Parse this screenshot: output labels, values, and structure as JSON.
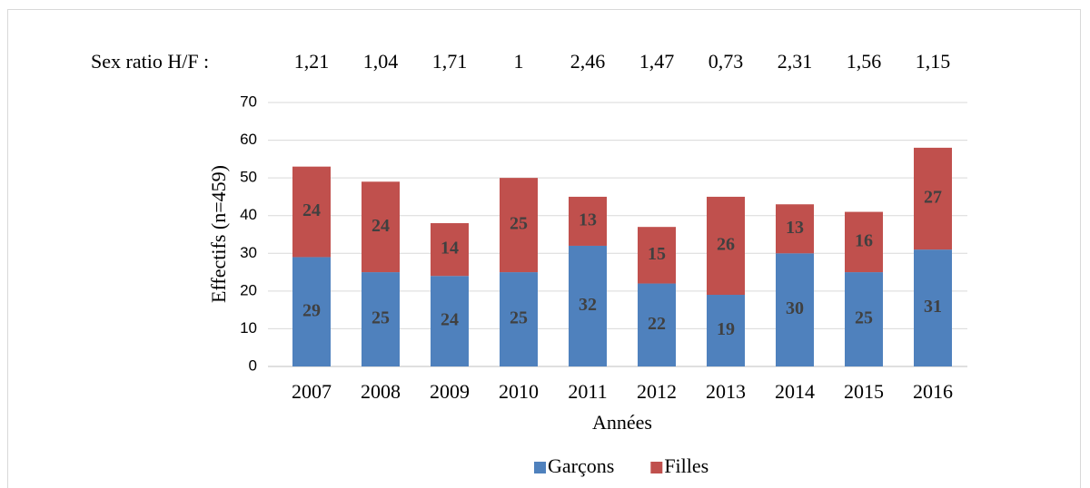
{
  "chart_data": {
    "type": "stacked_bar",
    "annotation_label": "Sex ratio H/F :",
    "annotations": [
      "1,21",
      "1,04",
      "1,71",
      "1",
      "2,46",
      "1,47",
      "0,73",
      "2,31",
      "1,56",
      "1,15"
    ],
    "categories": [
      "2007",
      "2008",
      "2009",
      "2010",
      "2011",
      "2012",
      "2013",
      "2014",
      "2015",
      "2016"
    ],
    "series": [
      {
        "name": "Garçons",
        "color": "#4f81bd",
        "values": [
          29,
          25,
          24,
          25,
          32,
          22,
          19,
          30,
          25,
          31
        ]
      },
      {
        "name": "Filles",
        "color": "#c0504d",
        "values": [
          24,
          24,
          14,
          25,
          13,
          15,
          26,
          13,
          16,
          27
        ]
      }
    ],
    "ylabel": "Effectifs (n=459)",
    "xlabel": "Années",
    "ylim": [
      0,
      70
    ],
    "yticks": [
      0,
      10,
      20,
      30,
      40,
      50,
      60,
      70
    ],
    "grid": true,
    "legend": "bottom"
  }
}
